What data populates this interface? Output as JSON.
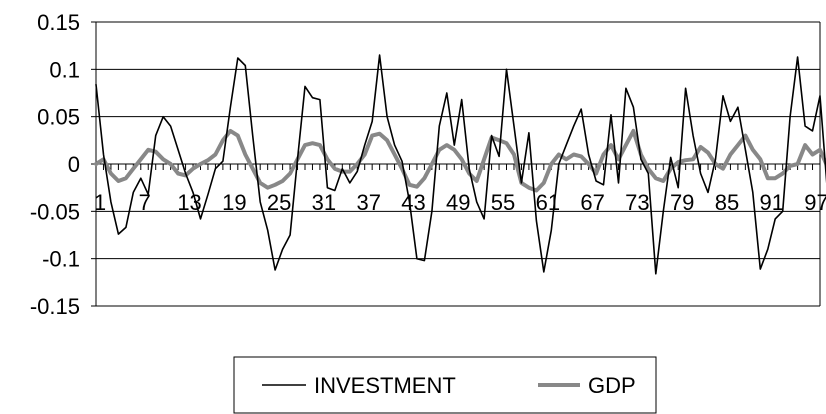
{
  "chart_data": {
    "type": "line",
    "title": "",
    "xlabel": "",
    "ylabel": "",
    "ylim": [
      -0.15,
      0.15
    ],
    "y_ticks": [
      "0.15",
      "0.1",
      "0.05",
      "0",
      "-0.05",
      "-0.1",
      "-0.15"
    ],
    "y_tick_values": [
      0.15,
      0.1,
      0.05,
      0,
      -0.05,
      -0.1,
      -0.15
    ],
    "x_tick_labels": [
      "1",
      "7",
      "13",
      "19",
      "25",
      "31",
      "37",
      "43",
      "49",
      "55",
      "61",
      "67",
      "73",
      "79",
      "85",
      "91",
      "97"
    ],
    "x_tick_values": [
      1,
      7,
      13,
      19,
      25,
      31,
      37,
      43,
      49,
      55,
      61,
      67,
      73,
      79,
      85,
      91,
      97
    ],
    "x_range": [
      1,
      98
    ],
    "grid": "horizontal",
    "legend_position": "bottom",
    "series": [
      {
        "name": "INVESTMENT",
        "color": "#000000",
        "values": [
          0.084,
          0.01,
          -0.04,
          -0.074,
          -0.067,
          -0.03,
          -0.015,
          -0.032,
          0.03,
          0.05,
          0.04,
          0.015,
          -0.01,
          -0.03,
          -0.058,
          -0.032,
          -0.005,
          0.003,
          0.06,
          0.112,
          0.104,
          0.03,
          -0.04,
          -0.07,
          -0.112,
          -0.09,
          -0.075,
          0.005,
          0.082,
          0.07,
          0.068,
          -0.025,
          -0.028,
          -0.005,
          -0.02,
          -0.008,
          0.02,
          0.045,
          0.115,
          0.05,
          0.02,
          0.003,
          -0.04,
          -0.1,
          -0.102,
          -0.05,
          0.04,
          0.075,
          0.02,
          0.068,
          -0.005,
          -0.04,
          -0.058,
          0.03,
          0.008,
          0.1,
          0.04,
          -0.02,
          0.033,
          -0.06,
          -0.114,
          -0.07,
          0.0,
          0.02,
          0.04,
          0.058,
          0.01,
          -0.018,
          -0.022,
          0.052,
          -0.02,
          0.08,
          0.06,
          0.005,
          -0.01,
          -0.116,
          -0.05,
          0.007,
          -0.025,
          0.08,
          0.03,
          -0.01,
          -0.03,
          0.005,
          0.072,
          0.045,
          0.06,
          0.015,
          -0.03,
          -0.111,
          -0.09,
          -0.058,
          -0.05,
          0.05,
          0.113,
          0.04,
          0.035,
          0.072,
          -0.03
        ]
      },
      {
        "name": "GDP",
        "color": "#888888",
        "values": [
          0.0,
          0.005,
          -0.01,
          -0.018,
          -0.015,
          -0.005,
          0.005,
          0.015,
          0.013,
          0.005,
          0.0,
          -0.01,
          -0.012,
          -0.005,
          0.0,
          0.004,
          0.01,
          0.025,
          0.035,
          0.03,
          0.01,
          -0.005,
          -0.02,
          -0.025,
          -0.022,
          -0.018,
          -0.01,
          0.005,
          0.02,
          0.022,
          0.02,
          0.005,
          -0.005,
          -0.008,
          -0.008,
          0.0,
          0.01,
          0.03,
          0.032,
          0.025,
          0.01,
          -0.005,
          -0.022,
          -0.024,
          -0.015,
          0.0,
          0.015,
          0.02,
          0.015,
          0.005,
          -0.01,
          -0.018,
          0.005,
          0.028,
          0.025,
          0.022,
          0.01,
          -0.02,
          -0.025,
          -0.028,
          -0.02,
          0.0,
          0.01,
          0.005,
          0.01,
          0.008,
          0.0,
          -0.01,
          0.01,
          0.02,
          0.005,
          0.02,
          0.035,
          0.01,
          -0.005,
          -0.015,
          -0.018,
          -0.005,
          0.002,
          0.004,
          0.005,
          0.018,
          0.012,
          0.0,
          -0.005,
          0.01,
          0.02,
          0.03,
          0.015,
          0.005,
          -0.015,
          -0.015,
          -0.01,
          -0.002,
          0.0,
          0.02,
          0.01,
          0.015,
          -0.003
        ]
      }
    ]
  }
}
